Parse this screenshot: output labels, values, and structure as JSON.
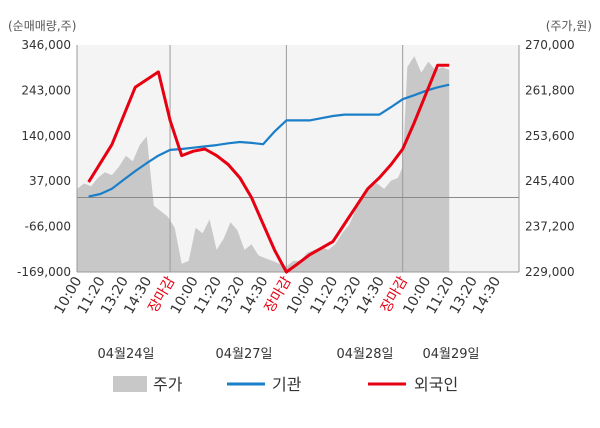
{
  "chart_data": {
    "type": "line",
    "left_axis": {
      "unit_label": "(순매매량,주)",
      "ticks": [
        346000,
        243000,
        140000,
        37000,
        -66000,
        -169000
      ],
      "tick_labels": [
        "346,000",
        "243,000",
        "140,000",
        "37,000",
        "-66,000",
        "-169,000"
      ],
      "range": [
        -169000,
        346000
      ]
    },
    "right_axis": {
      "unit_label": "(주가,원)",
      "ticks": [
        270000,
        261800,
        253600,
        245400,
        237200,
        229000
      ],
      "tick_labels": [
        "270,000",
        "261,800",
        "253,600",
        "245,400",
        "237,200",
        "229,000"
      ],
      "range": [
        229000,
        270000
      ]
    },
    "x_axis": {
      "tick_labels": [
        "10:00",
        "11:20",
        "13:20",
        "14:30",
        "장마감",
        "10:00",
        "11:20",
        "13:20",
        "14:30",
        "장마감",
        "10:00",
        "11:20",
        "13:20",
        "14:30",
        "장마감",
        "10:00",
        "11:20",
        "13:20",
        "14:30"
      ],
      "close_label": "장마감",
      "day_labels": [
        "04월24일",
        "04월27일",
        "04월28일",
        "04월29일"
      ],
      "day_boundaries": [
        4,
        9,
        14
      ]
    },
    "grid": true,
    "legend_position": "bottom",
    "legend": [
      {
        "name": "주가",
        "color": "#c8c8c8",
        "kind": "area"
      },
      {
        "name": "기관",
        "color": "#1a7fc8",
        "kind": "line"
      },
      {
        "name": "외국인",
        "color": "#e60012",
        "kind": "line"
      }
    ],
    "series": [
      {
        "name": "기관",
        "axis": "left",
        "color": "#1a7fc8",
        "x": [
          0.5,
          1,
          1.5,
          2,
          2.5,
          3,
          3.5,
          4,
          4.5,
          5,
          5.5,
          6,
          6.5,
          7,
          7.5,
          8,
          8.5,
          9,
          9.5,
          10,
          10.5,
          11,
          11.5,
          12,
          12.5,
          13,
          13.5,
          14,
          14.5,
          15,
          15.5,
          16
        ],
        "values": [
          2000,
          8000,
          20000,
          40000,
          60000,
          78000,
          95000,
          108000,
          110000,
          113000,
          116000,
          119000,
          123000,
          126000,
          124000,
          121000,
          150000,
          175000,
          175000,
          175000,
          180000,
          185000,
          188000,
          188000,
          188000,
          188000,
          205000,
          223000,
          232000,
          242000,
          250000,
          256000
        ]
      },
      {
        "name": "외국인",
        "axis": "left",
        "color": "#e60012",
        "x": [
          0.5,
          1.5,
          2.5,
          3.5,
          4,
          4.5,
          5,
          5.5,
          6,
          6.5,
          7,
          7.5,
          8,
          8.5,
          9,
          9.5,
          10,
          10.5,
          11,
          11.5,
          12,
          12.5,
          13,
          13.5,
          14,
          14.5,
          15,
          15.5,
          16
        ],
        "values": [
          35000,
          120000,
          250000,
          285000,
          175000,
          95000,
          105000,
          110000,
          95000,
          75000,
          45000,
          0,
          -60000,
          -120000,
          -169000,
          -150000,
          -130000,
          -115000,
          -100000,
          -60000,
          -20000,
          20000,
          45000,
          75000,
          110000,
          170000,
          235000,
          300000,
          300000
        ]
      },
      {
        "name": "주가",
        "axis": "right",
        "color": "#c8c8c8",
        "kind": "area",
        "x": [
          0,
          0.3,
          0.6,
          0.9,
          1.2,
          1.5,
          1.8,
          2.1,
          2.4,
          2.7,
          3.0,
          3.3,
          3.6,
          3.9,
          4.2,
          4.5,
          4.8,
          5.1,
          5.4,
          5.7,
          6.0,
          6.3,
          6.6,
          6.9,
          7.2,
          7.5,
          7.8,
          8.1,
          8.4,
          8.7,
          9.0,
          9.3,
          9.6,
          9.9,
          10.2,
          10.5,
          10.8,
          11.1,
          11.4,
          11.7,
          12.0,
          12.3,
          12.6,
          12.9,
          13.2,
          13.5,
          13.8,
          14.0,
          14.2,
          14.5,
          14.8,
          15.1,
          15.4,
          15.7,
          16.0
        ],
        "values": [
          244000,
          245000,
          244500,
          246000,
          247000,
          246500,
          248000,
          250000,
          249000,
          252000,
          253500,
          241000,
          240000,
          239000,
          237000,
          230500,
          231000,
          237000,
          236000,
          238500,
          233000,
          235000,
          238000,
          236500,
          233000,
          234000,
          232000,
          231500,
          231000,
          230500,
          230000,
          231000,
          231000,
          232500,
          233000,
          233500,
          233000,
          234000,
          236000,
          237500,
          240500,
          242500,
          244500,
          245000,
          244000,
          245500,
          246000,
          248000,
          266000,
          268000,
          265000,
          267000,
          265500,
          266000,
          265500
        ]
      }
    ]
  }
}
